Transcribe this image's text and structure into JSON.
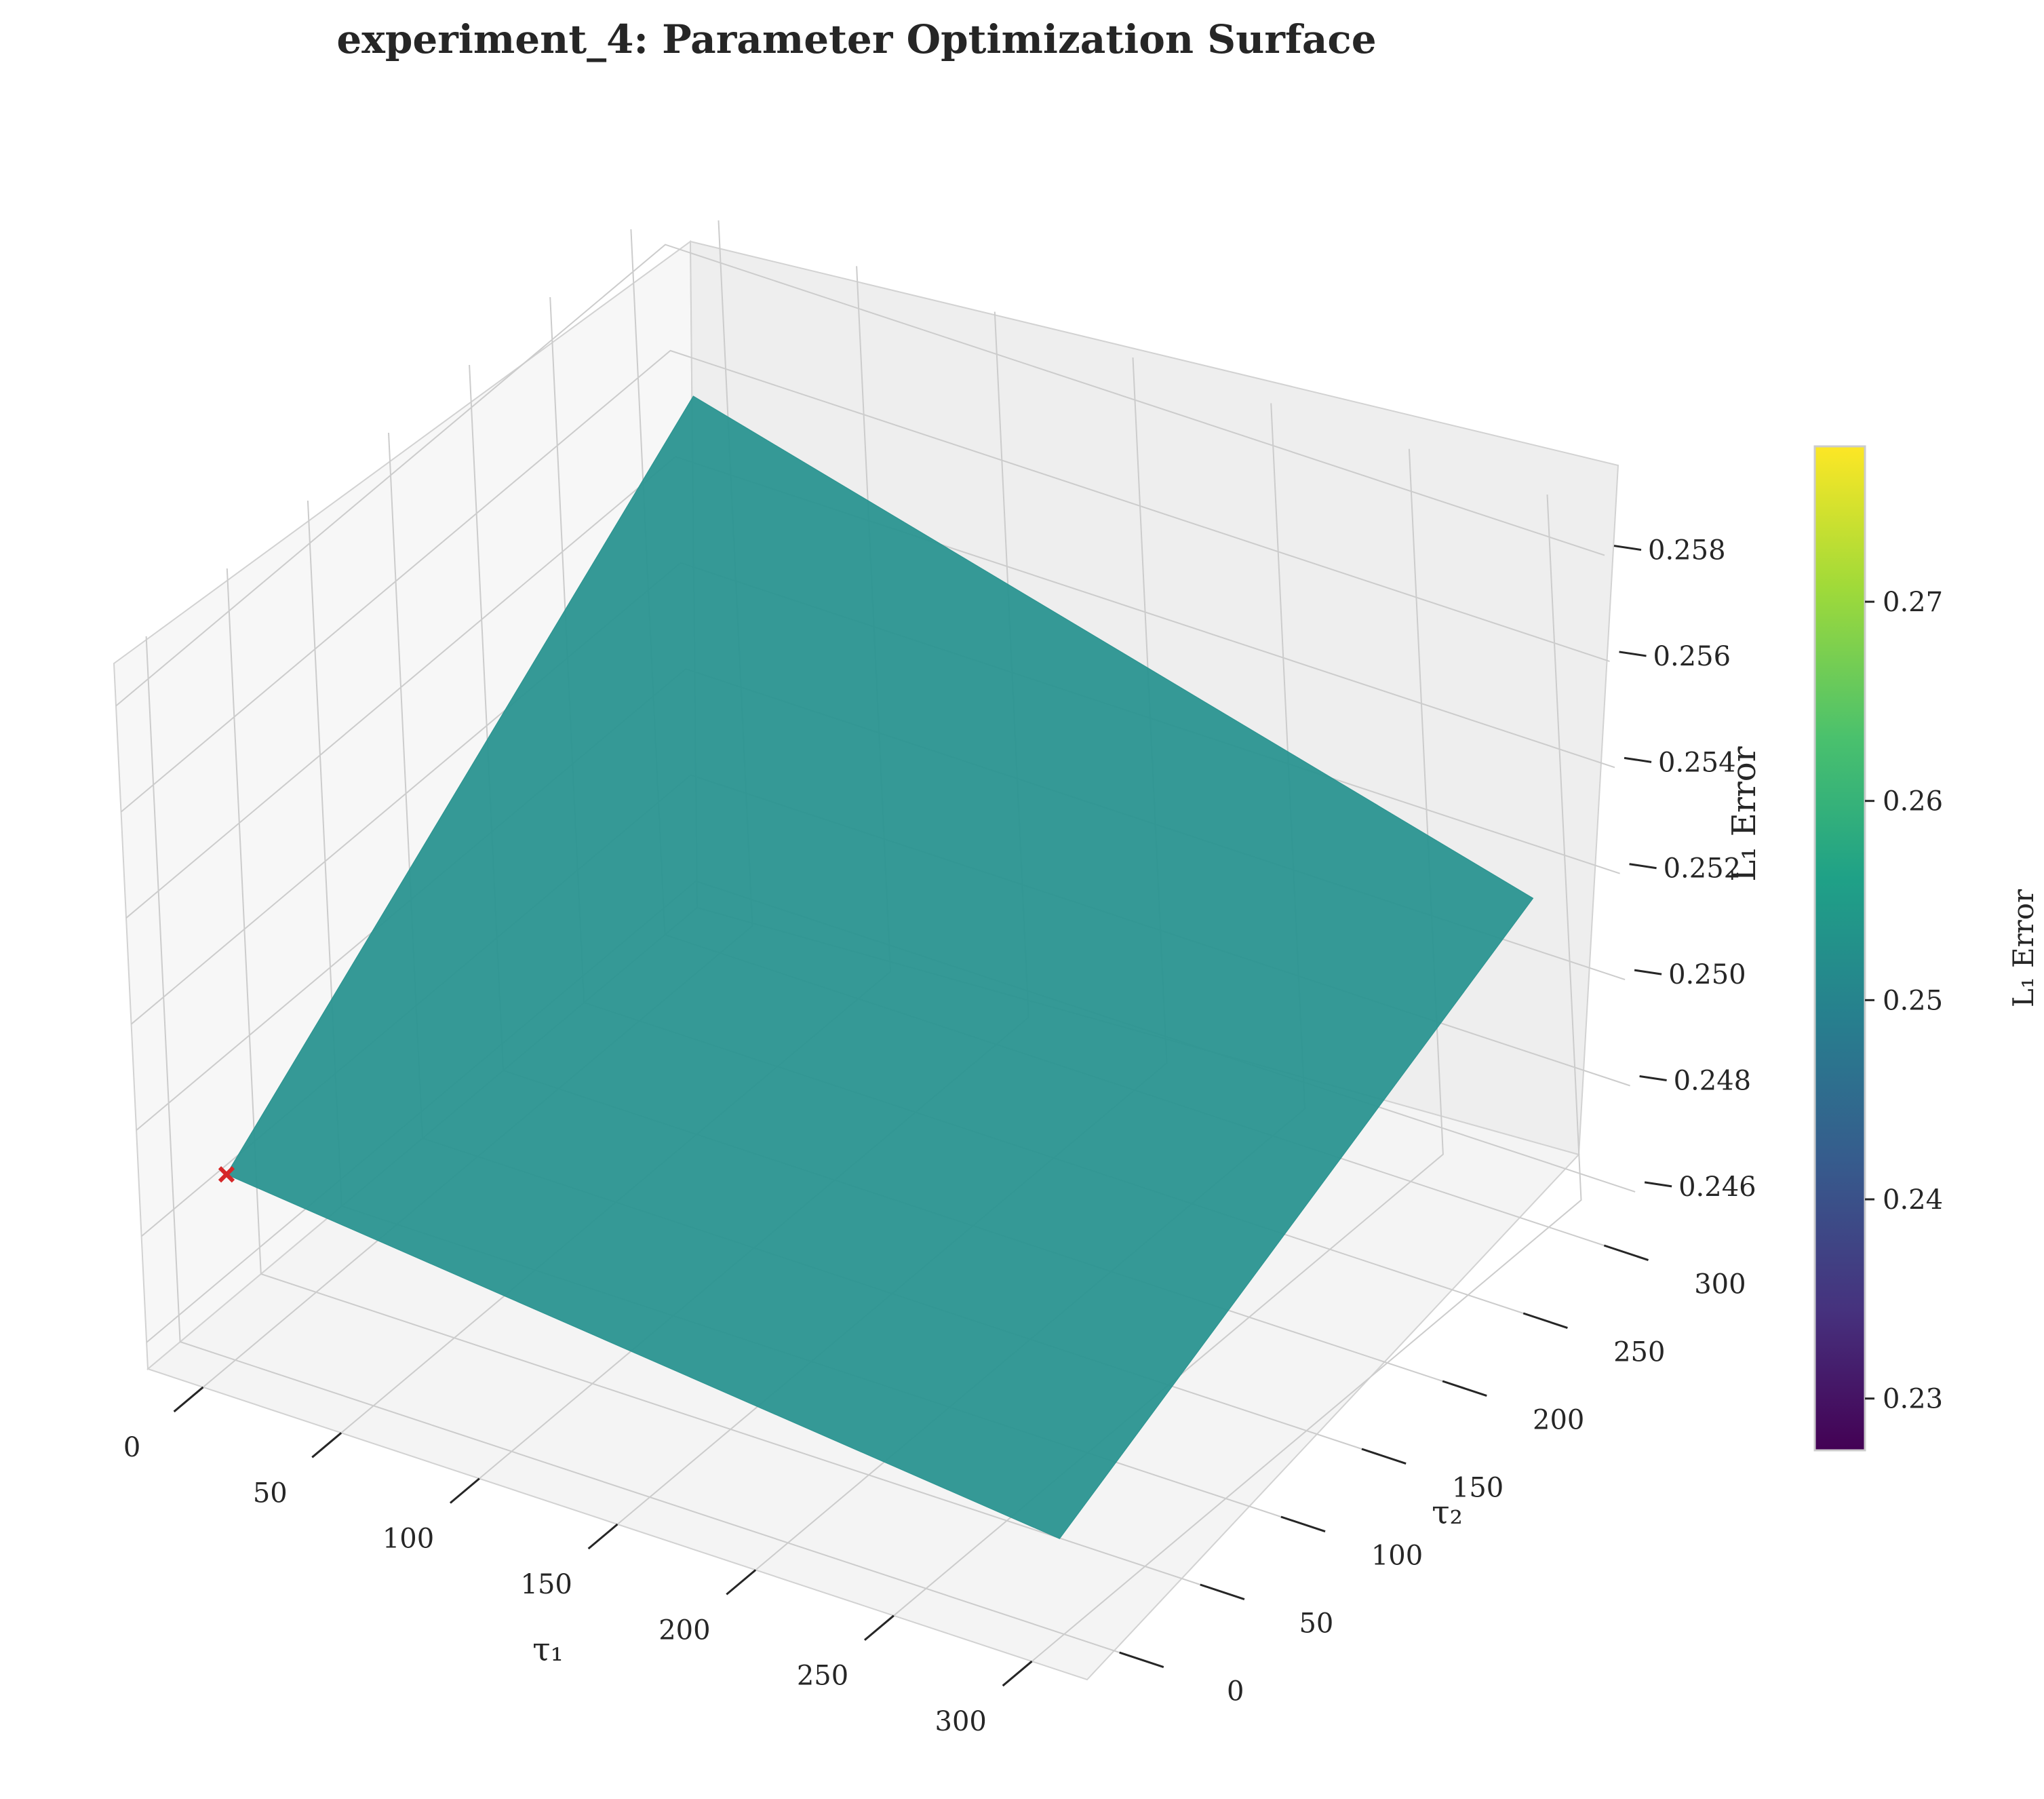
{
  "chart_data": {
    "type": "surface3d",
    "title": "experiment_4: Parameter Optimization Surface",
    "xlabel": "τ₁",
    "ylabel": "τ₂",
    "zlabel": "L₁ Error",
    "x_ticks": [
      "0",
      "50",
      "100",
      "150",
      "200",
      "250",
      "300"
    ],
    "y_ticks": [
      "0",
      "50",
      "100",
      "150",
      "200",
      "250",
      "300"
    ],
    "z_ticks": [
      "0.246",
      "0.248",
      "0.250",
      "0.252",
      "0.254",
      "0.256",
      "0.258"
    ],
    "xlim": [
      -20,
      320
    ],
    "ylim": [
      -20,
      320
    ],
    "zlim": [
      0.2455,
      0.2588
    ],
    "surface": {
      "x": [
        0,
        300
      ],
      "y": [
        0,
        300
      ],
      "z": [
        [
          0.249,
          0.2473
        ],
        [
          0.256,
          0.2517
        ]
      ]
    },
    "optimum_marker": {
      "x": 0,
      "y": 0,
      "z": 0.249,
      "color": "#d62728"
    },
    "colorbar": {
      "label": "L₁ Error",
      "range": [
        0.2274,
        0.2778
      ],
      "ticks": [
        "0.23",
        "0.24",
        "0.25",
        "0.26",
        "0.27"
      ],
      "colormap": "viridis"
    },
    "surface_color": "#2a9490",
    "pane_color": "#f2f2f2",
    "grid_color": "#cccccc"
  }
}
